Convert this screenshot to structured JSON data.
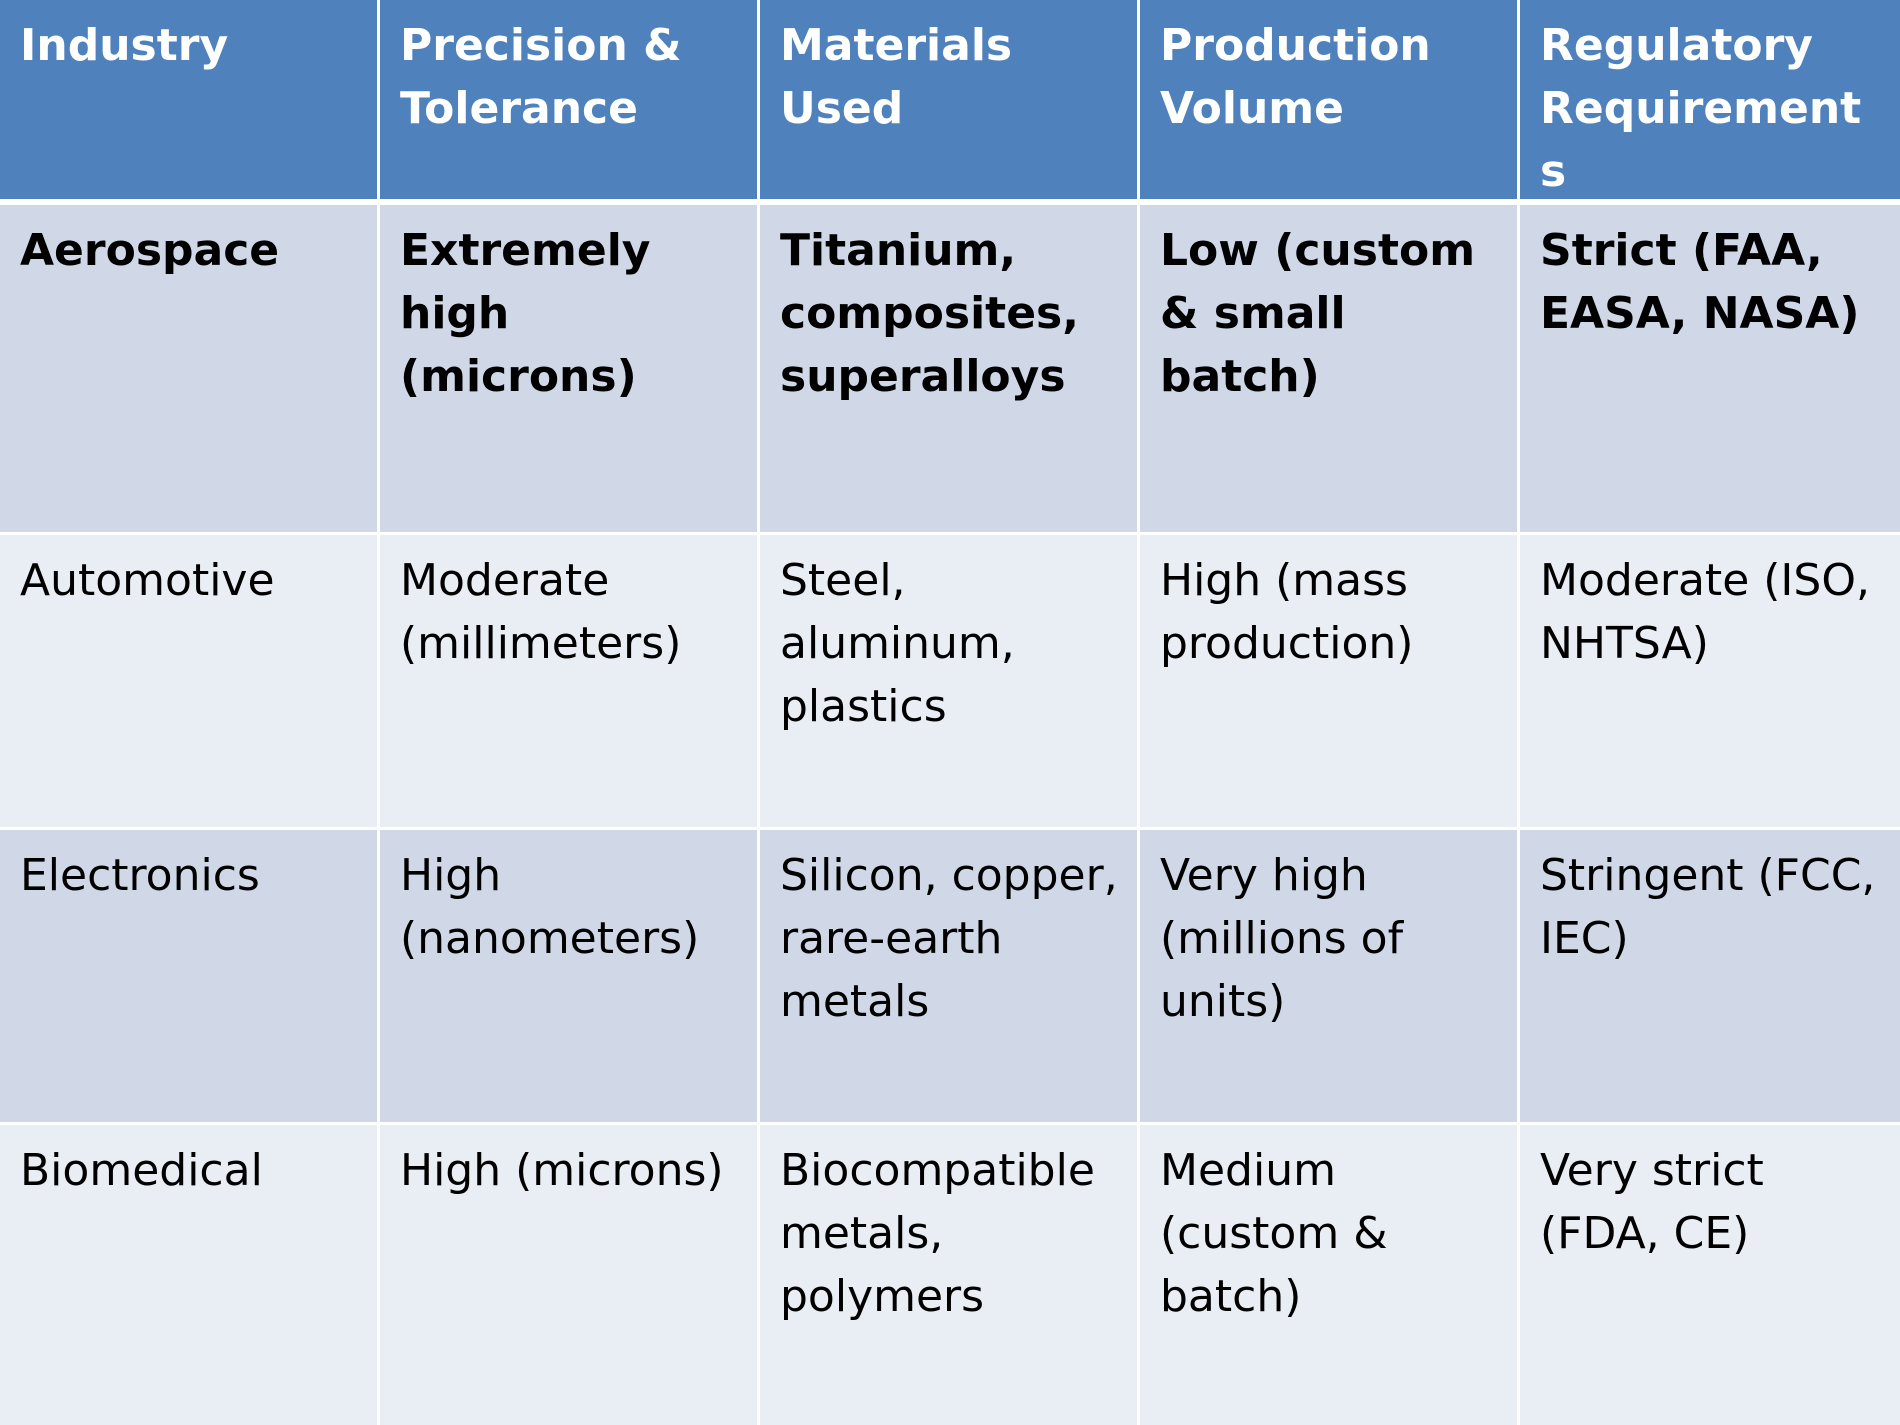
{
  "table": {
    "colors": {
      "header_bg": "#4f81bd",
      "header_text": "#ffffff",
      "row_dark": "#d0d8e8",
      "row_light": "#e9edf4"
    },
    "headers": [
      "Industry",
      "Precision & Tolerance",
      "Materials Used",
      "Production Volume",
      "Regulatory Requirements"
    ],
    "rows": [
      {
        "bold": true,
        "cells": [
          "Aerospace",
          "Extremely high (microns)",
          "Titanium, composites, superalloys",
          "Low (custom & small batch)",
          "Strict (FAA, EASA, NASA)"
        ]
      },
      {
        "bold": false,
        "cells": [
          "Automotive",
          "Moderate (millimeters)",
          "Steel, aluminum, plastics",
          "High (mass production)",
          "Moderate (ISO, NHTSA)"
        ]
      },
      {
        "bold": false,
        "cells": [
          "Electronics",
          "High (nanometers)",
          "Silicon, copper, rare-earth metals",
          "Very high (millions of units)",
          "Stringent (FCC, IEC)"
        ]
      },
      {
        "bold": false,
        "cells": [
          "Biomedical",
          "High (microns)",
          "Biocompatible metals, polymers",
          "Medium (custom & batch)",
          "Very strict (FDA, CE)"
        ]
      }
    ]
  }
}
